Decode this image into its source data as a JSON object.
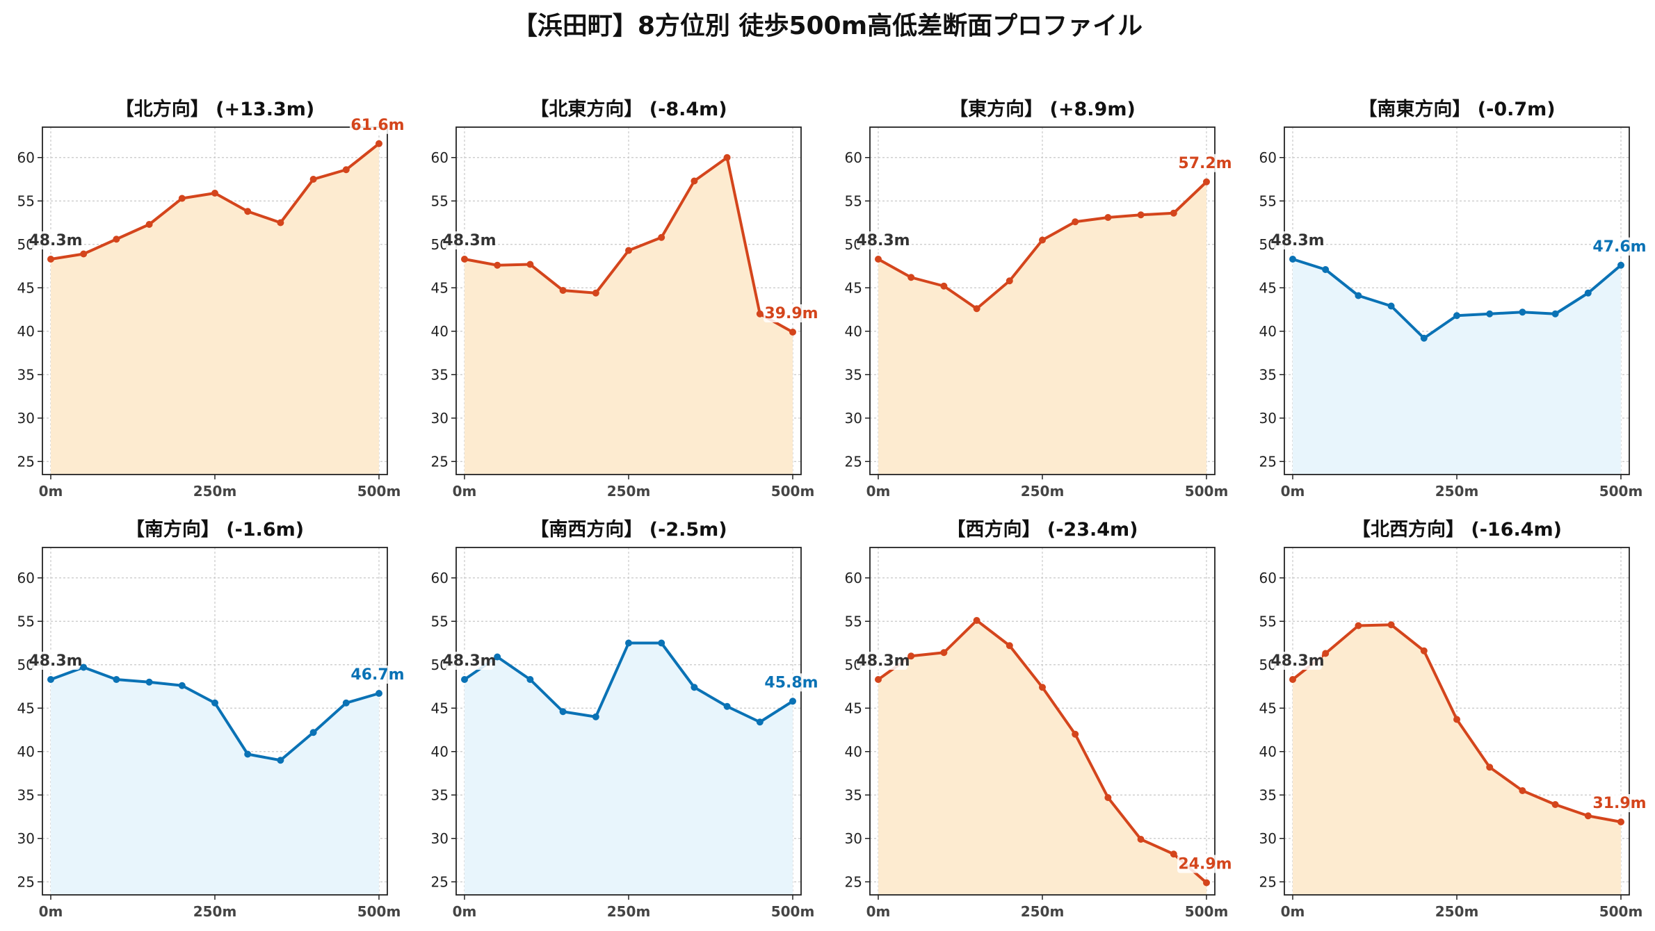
{
  "title": "【浜田町】8方位別 徒歩500m高低差断面プロファイル",
  "colors": {
    "up_line": "#d4451c",
    "up_fill": "#fdebd0",
    "down_line": "#0a72b5",
    "down_fill": "#e8f5fc",
    "grid": "#c8c8c8",
    "start_label": "#333333"
  },
  "chart_data": [
    {
      "type": "area",
      "title": "【北方向】 (+13.3m)",
      "trend": "up",
      "x": [
        0,
        50,
        100,
        150,
        200,
        250,
        300,
        350,
        400,
        450,
        500
      ],
      "y": [
        48.3,
        48.9,
        50.6,
        52.3,
        55.3,
        55.9,
        53.8,
        52.5,
        57.5,
        58.6,
        61.6
      ],
      "start_label": "48.3m",
      "end_label": "61.6m",
      "x_ticks": [
        "0m",
        "250m",
        "500m"
      ],
      "y_ticks": [
        25,
        30,
        35,
        40,
        45,
        50,
        55,
        60
      ],
      "ylim": [
        23.5,
        63.5
      ],
      "grid": true
    },
    {
      "type": "area",
      "title": "【北東方向】 (-8.4m)",
      "trend": "up",
      "x": [
        0,
        50,
        100,
        150,
        200,
        250,
        300,
        350,
        400,
        450,
        500
      ],
      "y": [
        48.3,
        47.6,
        47.7,
        44.7,
        44.4,
        49.3,
        50.8,
        57.3,
        60.0,
        42.0,
        39.9
      ],
      "start_label": "48.3m",
      "end_label": "39.9m",
      "x_ticks": [
        "0m",
        "250m",
        "500m"
      ],
      "y_ticks": [
        25,
        30,
        35,
        40,
        45,
        50,
        55,
        60
      ],
      "ylim": [
        23.5,
        63.5
      ],
      "grid": true
    },
    {
      "type": "area",
      "title": "【東方向】 (+8.9m)",
      "trend": "up",
      "x": [
        0,
        50,
        100,
        150,
        200,
        250,
        300,
        350,
        400,
        450,
        500
      ],
      "y": [
        48.3,
        46.2,
        45.2,
        42.6,
        45.8,
        50.5,
        52.6,
        53.1,
        53.4,
        53.6,
        57.2
      ],
      "start_label": "48.3m",
      "end_label": "57.2m",
      "x_ticks": [
        "0m",
        "250m",
        "500m"
      ],
      "y_ticks": [
        25,
        30,
        35,
        40,
        45,
        50,
        55,
        60
      ],
      "ylim": [
        23.5,
        63.5
      ],
      "grid": true
    },
    {
      "type": "area",
      "title": "【南東方向】 (-0.7m)",
      "trend": "down",
      "x": [
        0,
        50,
        100,
        150,
        200,
        250,
        300,
        350,
        400,
        450,
        500
      ],
      "y": [
        48.3,
        47.1,
        44.1,
        42.9,
        39.2,
        41.8,
        42.0,
        42.2,
        42.0,
        44.4,
        47.6
      ],
      "start_label": "48.3m",
      "end_label": "47.6m",
      "x_ticks": [
        "0m",
        "250m",
        "500m"
      ],
      "y_ticks": [
        25,
        30,
        35,
        40,
        45,
        50,
        55,
        60
      ],
      "ylim": [
        23.5,
        63.5
      ],
      "grid": true
    },
    {
      "type": "area",
      "title": "【南方向】 (-1.6m)",
      "trend": "down",
      "x": [
        0,
        50,
        100,
        150,
        200,
        250,
        300,
        350,
        400,
        450,
        500
      ],
      "y": [
        48.3,
        49.7,
        48.3,
        48.0,
        47.6,
        45.6,
        39.7,
        39.0,
        42.2,
        45.6,
        46.7
      ],
      "start_label": "48.3m",
      "end_label": "46.7m",
      "x_ticks": [
        "0m",
        "250m",
        "500m"
      ],
      "y_ticks": [
        25,
        30,
        35,
        40,
        45,
        50,
        55,
        60
      ],
      "ylim": [
        23.5,
        63.5
      ],
      "grid": true
    },
    {
      "type": "area",
      "title": "【南西方向】 (-2.5m)",
      "trend": "down",
      "x": [
        0,
        50,
        100,
        150,
        200,
        250,
        300,
        350,
        400,
        450,
        500
      ],
      "y": [
        48.3,
        50.9,
        48.3,
        44.6,
        44.0,
        52.5,
        52.5,
        47.4,
        45.2,
        43.4,
        45.8
      ],
      "start_label": "48.3m",
      "end_label": "45.8m",
      "x_ticks": [
        "0m",
        "250m",
        "500m"
      ],
      "y_ticks": [
        25,
        30,
        35,
        40,
        45,
        50,
        55,
        60
      ],
      "ylim": [
        23.5,
        63.5
      ],
      "grid": true
    },
    {
      "type": "area",
      "title": "【西方向】 (-23.4m)",
      "trend": "up",
      "x": [
        0,
        50,
        100,
        150,
        200,
        250,
        300,
        350,
        400,
        450,
        500
      ],
      "y": [
        48.3,
        51.0,
        51.4,
        55.1,
        52.2,
        47.4,
        42.0,
        34.7,
        29.9,
        28.2,
        24.9
      ],
      "start_label": "48.3m",
      "end_label": "24.9m",
      "x_ticks": [
        "0m",
        "250m",
        "500m"
      ],
      "y_ticks": [
        25,
        30,
        35,
        40,
        45,
        50,
        55,
        60
      ],
      "ylim": [
        23.5,
        63.5
      ],
      "grid": true
    },
    {
      "type": "area",
      "title": "【北西方向】 (-16.4m)",
      "trend": "up",
      "x": [
        0,
        50,
        100,
        150,
        200,
        250,
        300,
        350,
        400,
        450,
        500
      ],
      "y": [
        48.3,
        51.3,
        54.5,
        54.6,
        51.6,
        43.7,
        38.2,
        35.5,
        33.9,
        32.6,
        31.9
      ],
      "start_label": "48.3m",
      "end_label": "31.9m",
      "x_ticks": [
        "0m",
        "250m",
        "500m"
      ],
      "y_ticks": [
        25,
        30,
        35,
        40,
        45,
        50,
        55,
        60
      ],
      "ylim": [
        23.5,
        63.5
      ],
      "grid": true
    }
  ]
}
